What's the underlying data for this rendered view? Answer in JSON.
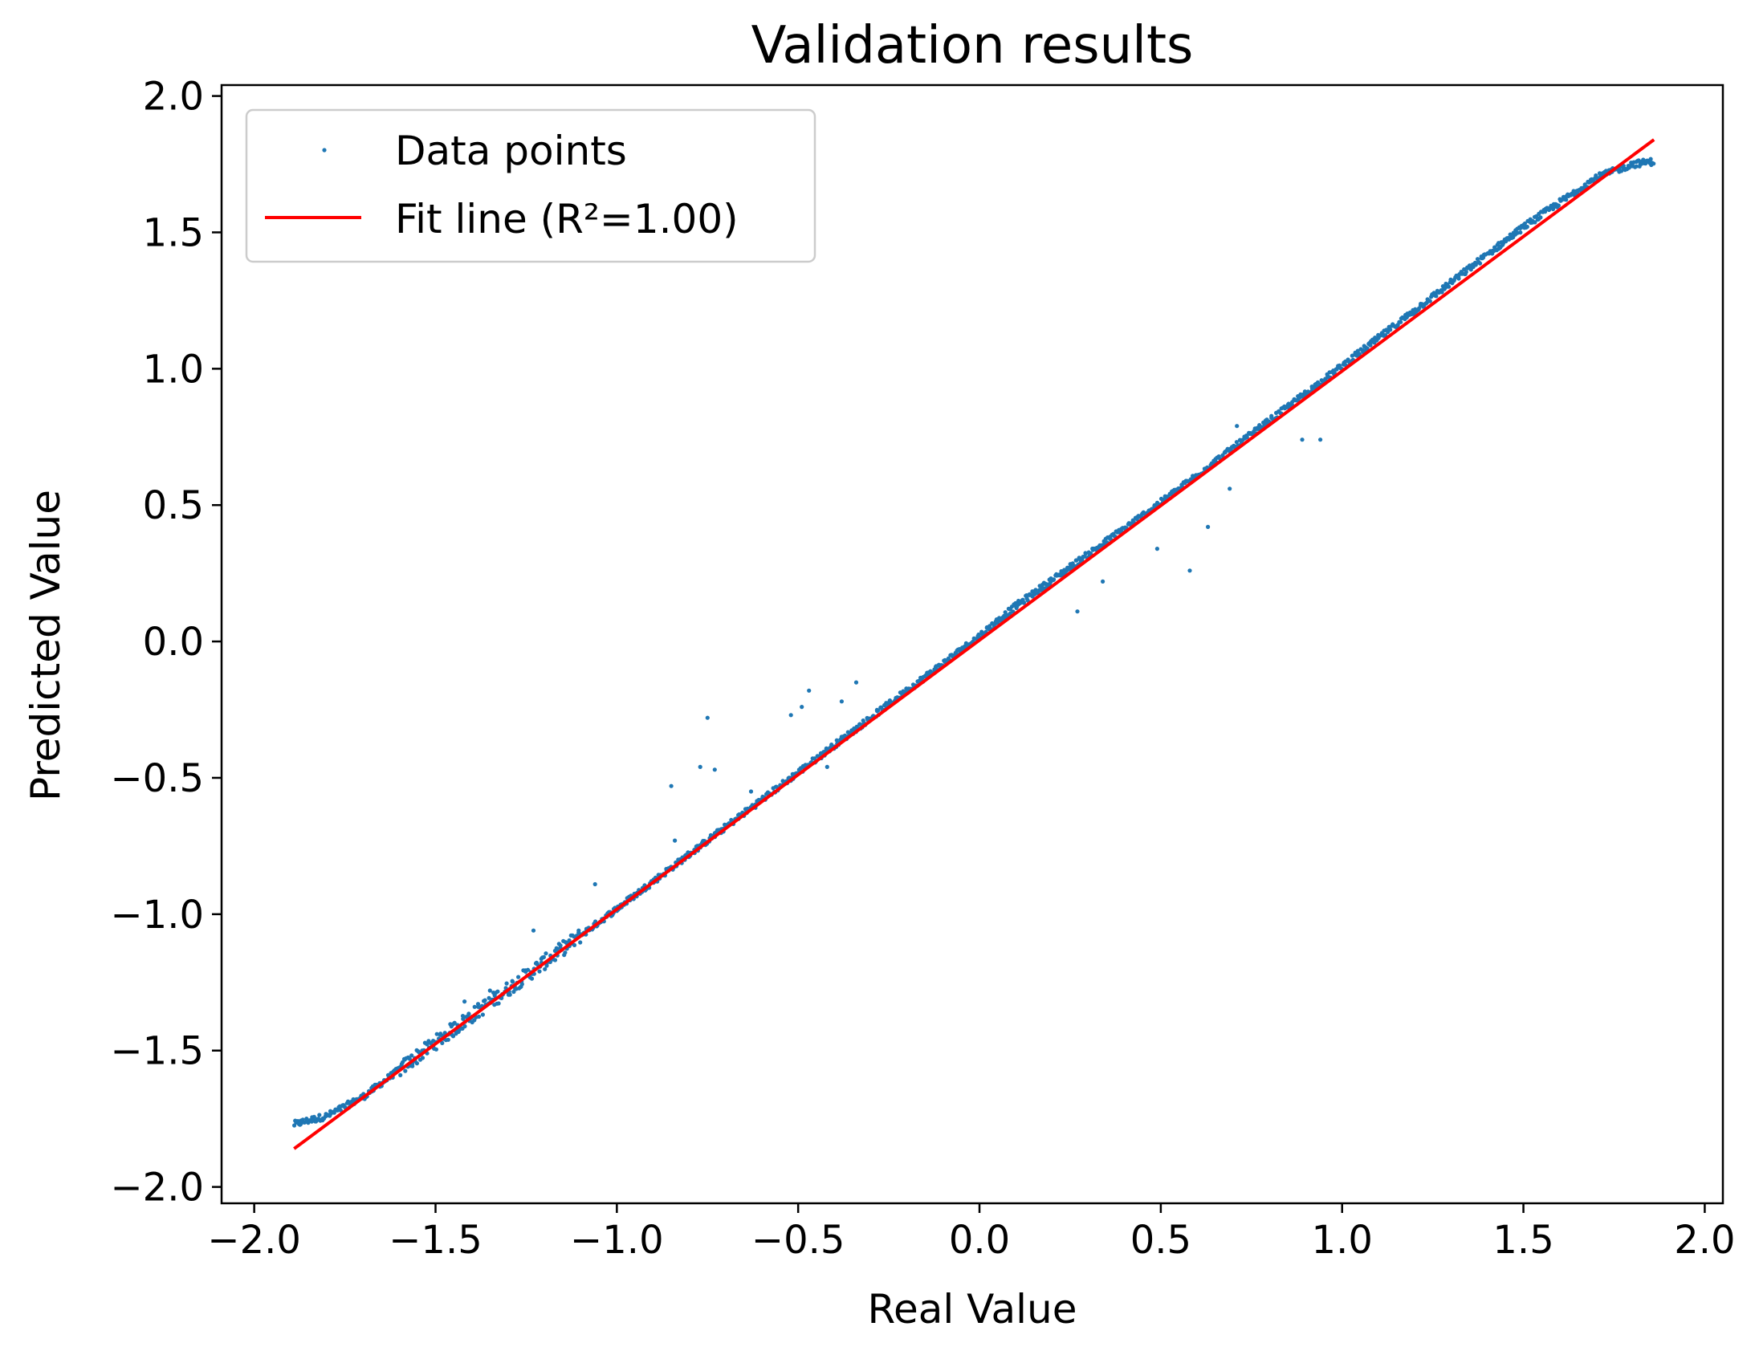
{
  "chart_data": {
    "type": "scatter",
    "title": "Validation results",
    "xlabel": "Real Value",
    "ylabel": "Predicted Value",
    "xlim": [
      -2.09,
      2.05
    ],
    "ylim": [
      -2.06,
      2.04
    ],
    "xticks": [
      -2.0,
      -1.5,
      -1.0,
      -0.5,
      0.0,
      0.5,
      1.0,
      1.5,
      2.0
    ],
    "xtick_labels": [
      "−2.0",
      "−1.5",
      "−1.0",
      "−0.5",
      "0.0",
      "0.5",
      "1.0",
      "1.5",
      "2.0"
    ],
    "yticks": [
      -2.0,
      -1.5,
      -1.0,
      -0.5,
      0.0,
      0.5,
      1.0,
      1.5,
      2.0
    ],
    "ytick_labels": [
      "−2.0",
      "−1.5",
      "−1.0",
      "−0.5",
      "0.0",
      "0.5",
      "1.0",
      "1.5",
      "2.0"
    ],
    "grid": false,
    "legend": {
      "placement": "upper-left",
      "entries": [
        "Data points",
        "Fit line (R²=1.00)"
      ]
    },
    "series": [
      {
        "name": "Data points",
        "kind": "scatter",
        "color": "#1f77b4",
        "x_range": [
          -1.89,
          1.86
        ],
        "main_trend": [
          [
            -1.89,
            -1.77
          ],
          [
            -1.8,
            -1.74
          ],
          [
            -1.7,
            -1.67
          ],
          [
            -1.5,
            -1.47
          ],
          [
            -1.0,
            -0.98
          ],
          [
            -0.5,
            -0.48
          ],
          [
            0.0,
            0.02
          ],
          [
            0.1,
            0.13
          ],
          [
            0.5,
            0.51
          ],
          [
            1.0,
            1.01
          ],
          [
            1.5,
            1.52
          ],
          [
            1.7,
            1.7
          ],
          [
            1.8,
            1.75
          ],
          [
            1.86,
            1.76
          ]
        ],
        "outliers": [
          [
            -0.85,
            -0.53
          ],
          [
            -0.77,
            -0.46
          ],
          [
            -0.75,
            -0.28
          ],
          [
            -0.73,
            -0.47
          ],
          [
            -0.63,
            -0.55
          ],
          [
            -0.52,
            -0.27
          ],
          [
            -0.49,
            -0.24
          ],
          [
            -0.47,
            -0.18
          ],
          [
            -0.42,
            -0.46
          ],
          [
            -0.38,
            -0.22
          ],
          [
            -0.34,
            -0.15
          ],
          [
            -0.2,
            -0.18
          ],
          [
            -0.84,
            -0.73
          ],
          [
            -1.06,
            -0.89
          ],
          [
            -1.23,
            -1.06
          ],
          [
            -1.35,
            -1.28
          ],
          [
            -1.42,
            -1.32
          ],
          [
            0.27,
            0.11
          ],
          [
            0.34,
            0.22
          ],
          [
            0.49,
            0.34
          ],
          [
            0.58,
            0.26
          ],
          [
            0.63,
            0.42
          ],
          [
            0.69,
            0.56
          ],
          [
            0.89,
            0.74
          ],
          [
            0.94,
            0.74
          ],
          [
            0.71,
            0.79
          ]
        ]
      },
      {
        "name": "Fit line (R²=1.00)",
        "kind": "line",
        "color": "#ff0000",
        "points": [
          [
            -1.89,
            -1.86
          ],
          [
            1.86,
            1.84
          ]
        ]
      }
    ]
  }
}
